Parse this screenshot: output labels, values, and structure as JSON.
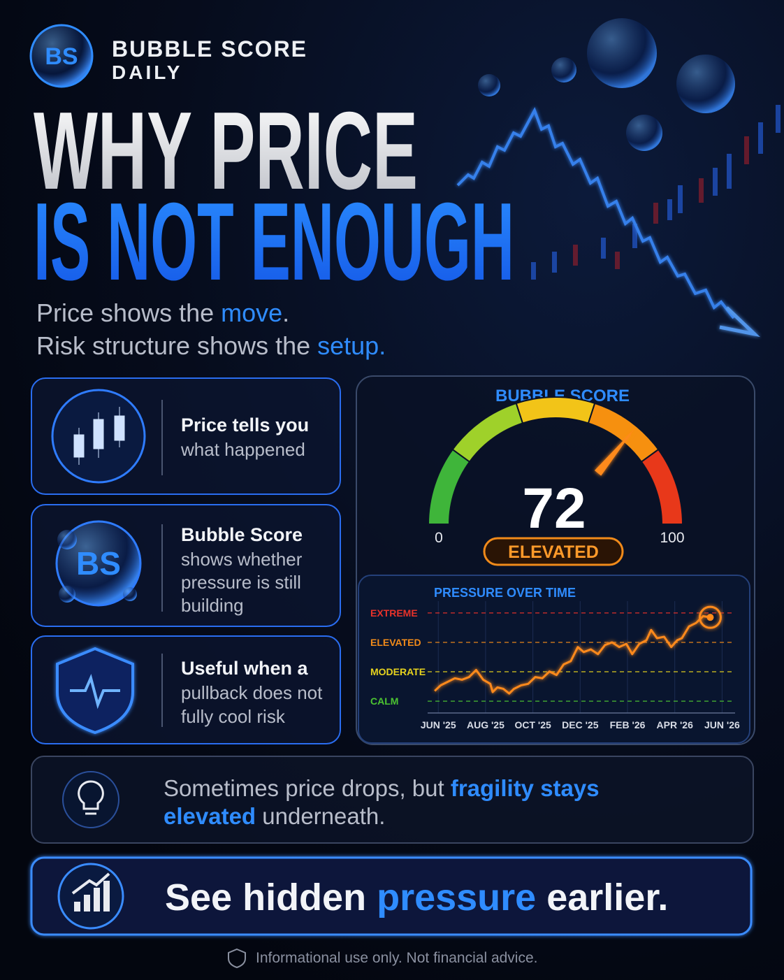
{
  "brand": {
    "logo": "BS",
    "name_line1": "BUBBLE SCORE",
    "name_line2": "DAILY"
  },
  "headline": {
    "line1": "WHY PRICE",
    "line2": "IS NOT ENOUGH"
  },
  "subtitle": {
    "line1": [
      "Price shows the ",
      "move",
      "."
    ],
    "line2": [
      "Risk structure shows the ",
      "setup."
    ]
  },
  "cards": [
    {
      "title": "Price tells you",
      "body": [
        "what happened"
      ]
    },
    {
      "icon": "BS",
      "title": "Bubble Score",
      "body": [
        "shows whether",
        "pressure is still",
        "building"
      ]
    },
    {
      "title": "Useful when a",
      "body": [
        "pullback does not",
        "fully cool risk"
      ]
    }
  ],
  "chart_data": [
    {
      "type": "gauge",
      "title": "BUBBLE SCORE",
      "value": 72,
      "status": "ELEVATED",
      "ylim": [
        0,
        100
      ],
      "yticks": [
        0,
        100
      ],
      "colors": [
        "#3fb53a",
        "#9fd12a",
        "#f2c418",
        "#f6900f",
        "#e8381a"
      ]
    },
    {
      "type": "line",
      "title": "PRESSURE OVER TIME",
      "color": "#ff8a1a",
      "grid": true,
      "x": [
        -0.15,
        0.1,
        0.4,
        0.7,
        1.0,
        1.3,
        1.6,
        1.9,
        2.2,
        2.3,
        2.5,
        2.75,
        3.0,
        3.2,
        3.5,
        3.8,
        4.1,
        4.4,
        4.7,
        5.0,
        5.3,
        5.6,
        5.9,
        6.15,
        6.45,
        6.75,
        7.05,
        7.35,
        7.65,
        7.95,
        8.2,
        8.5,
        8.8,
        9.0,
        9.25,
        9.55,
        9.85,
        10.1,
        10.3,
        10.6,
        10.9,
        11.2,
        11.5
      ],
      "values": [
        1.35,
        1.54,
        1.66,
        1.78,
        1.73,
        1.82,
        2.06,
        1.73,
        1.59,
        1.31,
        1.47,
        1.42,
        1.26,
        1.42,
        1.54,
        1.59,
        1.82,
        1.78,
        2.01,
        1.89,
        2.25,
        2.36,
        2.84,
        2.67,
        2.76,
        2.6,
        2.91,
        3.0,
        2.84,
        2.95,
        2.6,
        2.95,
        3.07,
        3.42,
        3.14,
        3.19,
        2.84,
        3.07,
        3.14,
        3.54,
        3.66,
        3.89,
        3.85
      ],
      "xlim": [
        -0.45,
        12.55
      ],
      "xticks": [
        {
          "value": 0,
          "label": "JUN '25"
        },
        {
          "value": 2,
          "label": "AUG '25"
        },
        {
          "value": 4,
          "label": "OCT '25"
        },
        {
          "value": 6,
          "label": "DEC '25"
        },
        {
          "value": 8,
          "label": "FEB '26"
        },
        {
          "value": 10,
          "label": "APR '26"
        },
        {
          "value": 12,
          "label": "JUN '26"
        }
      ],
      "ylim": [
        0.6,
        4.4
      ],
      "yticks": [
        {
          "value": 1,
          "label": "CALM"
        },
        {
          "value": 2,
          "label": "MODERATE"
        },
        {
          "value": 3,
          "label": "ELEVATED"
        },
        {
          "value": 4,
          "label": "EXTREME"
        }
      ],
      "ytick_colors": [
        "#4cc431",
        "#e6d21e",
        "#f08a1a",
        "#e8322a"
      ]
    }
  ],
  "tip": {
    "line1": [
      "Sometimes price drops, but ",
      "fragility stays"
    ],
    "line2": [
      "elevated",
      " underneath."
    ]
  },
  "cta": [
    "See hidden ",
    "pressure",
    " earlier."
  ],
  "footer": "Informational use only. Not financial advice."
}
